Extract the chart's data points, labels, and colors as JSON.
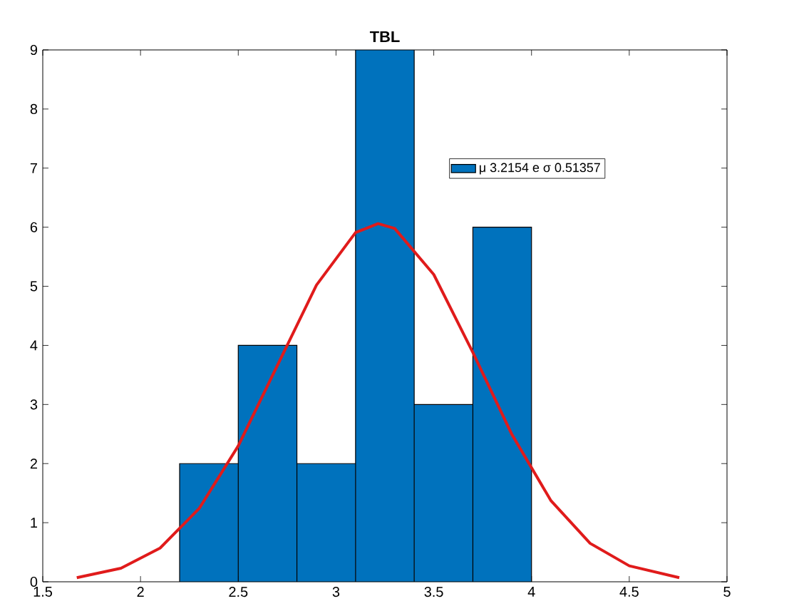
{
  "chart_data": {
    "type": "histogram",
    "title": "TBL",
    "xlim": [
      1.5,
      5
    ],
    "ylim": [
      0,
      9
    ],
    "xticks": [
      1.5,
      2,
      2.5,
      3,
      3.5,
      4,
      4.5,
      5
    ],
    "yticks": [
      0,
      1,
      2,
      3,
      4,
      5,
      6,
      7,
      8,
      9
    ],
    "legend": "top right",
    "grid": false,
    "series": [
      {
        "name": "μ 3.2154 e σ 0.51357",
        "color": "#0072bd",
        "bins": [
          2.2,
          2.5,
          2.8,
          3.1,
          3.4,
          3.7,
          4.0
        ],
        "values": [
          2,
          4,
          2,
          9,
          3,
          6
        ]
      },
      {
        "type": "line",
        "color": "#e01b1b",
        "x": [
          1.674,
          1.9,
          2.1,
          2.3,
          2.5,
          2.7,
          2.9,
          3.1,
          3.2154,
          3.3,
          3.5,
          3.7,
          3.9,
          4.1,
          4.3,
          4.5,
          4.756
        ],
        "values": [
          0.07,
          0.23,
          0.57,
          1.24,
          2.3,
          3.66,
          5.02,
          5.91,
          6.06,
          5.98,
          5.2,
          3.88,
          2.49,
          1.37,
          0.65,
          0.27,
          0.07
        ]
      }
    ]
  }
}
